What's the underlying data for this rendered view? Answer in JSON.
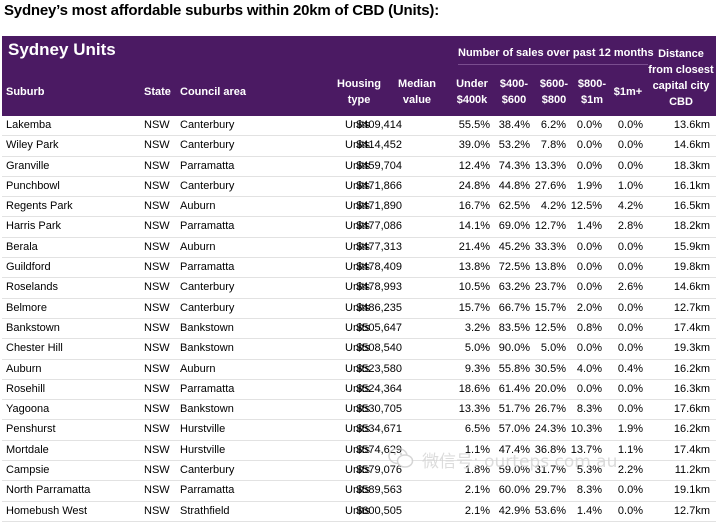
{
  "page_title": "Sydney’s most affordable suburbs within 20km of CBD (Units):",
  "table": {
    "sheet_title": "Sydney Units",
    "sales_group_label": "Number of sales over past 12 months",
    "headers": {
      "suburb": "Suburb",
      "state": "State",
      "council": "Council area",
      "housing_type": [
        "Housing",
        "type"
      ],
      "median": [
        "Median",
        "value"
      ],
      "under400": [
        "Under",
        "$400k"
      ],
      "b400_600": [
        "$400-",
        "$600"
      ],
      "b600_800": [
        "$600-",
        "$800"
      ],
      "b800_1m": [
        "$800-",
        "$1m"
      ],
      "over1m": "$1m+",
      "distance": [
        "Distance",
        "from closest",
        "capital city",
        "CBD"
      ]
    },
    "rows": [
      {
        "suburb": "Lakemba",
        "state": "NSW",
        "council": "Canterbury",
        "type": "Units",
        "median": "$409,414",
        "u400": "55.5%",
        "b400": "38.4%",
        "b600": "6.2%",
        "b800": "0.0%",
        "m1": "0.0%",
        "dist": "13.6km"
      },
      {
        "suburb": "Wiley Park",
        "state": "NSW",
        "council": "Canterbury",
        "type": "Units",
        "median": "$414,452",
        "u400": "39.0%",
        "b400": "53.2%",
        "b600": "7.8%",
        "b800": "0.0%",
        "m1": "0.0%",
        "dist": "14.6km"
      },
      {
        "suburb": "Granville",
        "state": "NSW",
        "council": "Parramatta",
        "type": "Units",
        "median": "$459,704",
        "u400": "12.4%",
        "b400": "74.3%",
        "b600": "13.3%",
        "b800": "0.0%",
        "m1": "0.0%",
        "dist": "18.3km"
      },
      {
        "suburb": "Punchbowl",
        "state": "NSW",
        "council": "Canterbury",
        "type": "Units",
        "median": "$471,866",
        "u400": "24.8%",
        "b400": "44.8%",
        "b600": "27.6%",
        "b800": "1.9%",
        "m1": "1.0%",
        "dist": "16.1km"
      },
      {
        "suburb": "Regents Park",
        "state": "NSW",
        "council": "Auburn",
        "type": "Units",
        "median": "$471,890",
        "u400": "16.7%",
        "b400": "62.5%",
        "b600": "4.2%",
        "b800": "12.5%",
        "m1": "4.2%",
        "dist": "16.5km"
      },
      {
        "suburb": "Harris Park",
        "state": "NSW",
        "council": "Parramatta",
        "type": "Units",
        "median": "$477,086",
        "u400": "14.1%",
        "b400": "69.0%",
        "b600": "12.7%",
        "b800": "1.4%",
        "m1": "2.8%",
        "dist": "18.2km"
      },
      {
        "suburb": "Berala",
        "state": "NSW",
        "council": "Auburn",
        "type": "Units",
        "median": "$477,313",
        "u400": "21.4%",
        "b400": "45.2%",
        "b600": "33.3%",
        "b800": "0.0%",
        "m1": "0.0%",
        "dist": "15.9km"
      },
      {
        "suburb": "Guildford",
        "state": "NSW",
        "council": "Parramatta",
        "type": "Units",
        "median": "$478,409",
        "u400": "13.8%",
        "b400": "72.5%",
        "b600": "13.8%",
        "b800": "0.0%",
        "m1": "0.0%",
        "dist": "19.8km"
      },
      {
        "suburb": "Roselands",
        "state": "NSW",
        "council": "Canterbury",
        "type": "Units",
        "median": "$478,993",
        "u400": "10.5%",
        "b400": "63.2%",
        "b600": "23.7%",
        "b800": "0.0%",
        "m1": "2.6%",
        "dist": "14.6km"
      },
      {
        "suburb": "Belmore",
        "state": "NSW",
        "council": "Canterbury",
        "type": "Units",
        "median": "$486,235",
        "u400": "15.7%",
        "b400": "66.7%",
        "b600": "15.7%",
        "b800": "2.0%",
        "m1": "0.0%",
        "dist": "12.7km"
      },
      {
        "suburb": "Bankstown",
        "state": "NSW",
        "council": "Bankstown",
        "type": "Units",
        "median": "$505,647",
        "u400": "3.2%",
        "b400": "83.5%",
        "b600": "12.5%",
        "b800": "0.8%",
        "m1": "0.0%",
        "dist": "17.4km"
      },
      {
        "suburb": "Chester Hill",
        "state": "NSW",
        "council": "Bankstown",
        "type": "Units",
        "median": "$508,540",
        "u400": "5.0%",
        "b400": "90.0%",
        "b600": "5.0%",
        "b800": "0.0%",
        "m1": "0.0%",
        "dist": "19.3km"
      },
      {
        "suburb": "Auburn",
        "state": "NSW",
        "council": "Auburn",
        "type": "Units",
        "median": "$523,580",
        "u400": "9.3%",
        "b400": "55.8%",
        "b600": "30.5%",
        "b800": "4.0%",
        "m1": "0.4%",
        "dist": "16.2km"
      },
      {
        "suburb": "Rosehill",
        "state": "NSW",
        "council": "Parramatta",
        "type": "Units",
        "median": "$524,364",
        "u400": "18.6%",
        "b400": "61.4%",
        "b600": "20.0%",
        "b800": "0.0%",
        "m1": "0.0%",
        "dist": "16.3km"
      },
      {
        "suburb": "Yagoona",
        "state": "NSW",
        "council": "Bankstown",
        "type": "Units",
        "median": "$530,705",
        "u400": "13.3%",
        "b400": "51.7%",
        "b600": "26.7%",
        "b800": "8.3%",
        "m1": "0.0%",
        "dist": "17.6km"
      },
      {
        "suburb": "Penshurst",
        "state": "NSW",
        "council": "Hurstville",
        "type": "Units",
        "median": "$534,671",
        "u400": "6.5%",
        "b400": "57.0%",
        "b600": "24.3%",
        "b800": "10.3%",
        "m1": "1.9%",
        "dist": "16.2km"
      },
      {
        "suburb": "Mortdale",
        "state": "NSW",
        "council": "Hurstville",
        "type": "Units",
        "median": "$574,629",
        "u400": "1.1%",
        "b400": "47.4%",
        "b600": "36.8%",
        "b800": "13.7%",
        "m1": "1.1%",
        "dist": "17.4km"
      },
      {
        "suburb": "Campsie",
        "state": "NSW",
        "council": "Canterbury",
        "type": "Units",
        "median": "$579,076",
        "u400": "1.8%",
        "b400": "59.0%",
        "b600": "31.7%",
        "b800": "5.3%",
        "m1": "2.2%",
        "dist": "11.2km"
      },
      {
        "suburb": "North Parramatta",
        "state": "NSW",
        "council": "Parramatta",
        "type": "Units",
        "median": "$589,563",
        "u400": "2.1%",
        "b400": "60.0%",
        "b600": "29.7%",
        "b800": "8.3%",
        "m1": "0.0%",
        "dist": "19.1km"
      },
      {
        "suburb": "Homebush West",
        "state": "NSW",
        "council": "Strathfield",
        "type": "Units",
        "median": "$600,505",
        "u400": "2.1%",
        "b400": "42.9%",
        "b600": "53.6%",
        "b800": "1.4%",
        "m1": "0.0%",
        "dist": "12.7km"
      }
    ]
  },
  "watermark": {
    "icon": "wechat-icon",
    "text": "微信号: ourteps com au"
  }
}
